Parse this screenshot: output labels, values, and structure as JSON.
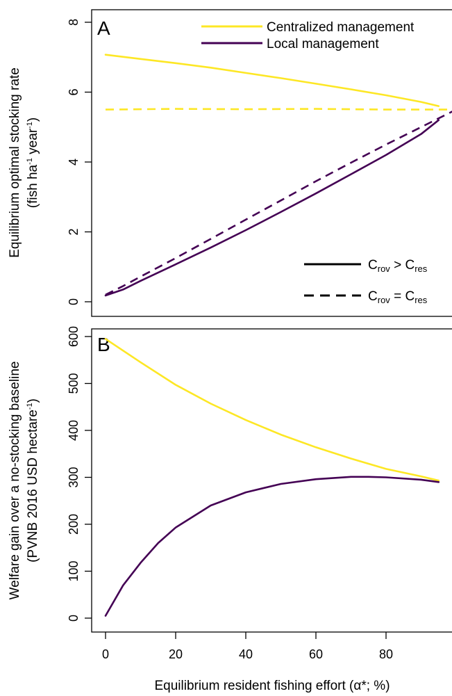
{
  "chart_data": [
    {
      "panel": "A",
      "type": "line",
      "ylabel_line1": "Equilibrium optimal stocking rate",
      "ylabel_line2": {
        "pre": "(fish ha",
        "sup1": "-1",
        "mid": " year",
        "sup2": "-1",
        "post": ")"
      },
      "ylim": [
        0,
        8
      ],
      "yticks": [
        0,
        2,
        4,
        6,
        8
      ],
      "xlim": [
        -3,
        100
      ],
      "grid": false,
      "legend_placement": "top-right",
      "series": [
        {
          "name": "Centralized management",
          "color": "#FDE725",
          "dash": "solid",
          "x": [
            0,
            10,
            20,
            30,
            40,
            50,
            60,
            70,
            80,
            90,
            95
          ],
          "y": [
            7.07,
            6.95,
            6.83,
            6.7,
            6.55,
            6.4,
            6.24,
            6.08,
            5.91,
            5.72,
            5.6
          ]
        },
        {
          "name": "Local management",
          "color": "#440154",
          "dash": "solid",
          "x": [
            0,
            5,
            10,
            20,
            30,
            40,
            50,
            60,
            70,
            80,
            90,
            95
          ],
          "y": [
            0.18,
            0.35,
            0.6,
            1.07,
            1.55,
            2.05,
            2.57,
            3.1,
            3.65,
            4.2,
            4.8,
            5.2
          ]
        },
        {
          "name": "",
          "color": "#FDE725",
          "dash": "dashed",
          "x": [
            0,
            20,
            40,
            60,
            80,
            100
          ],
          "y": [
            5.5,
            5.52,
            5.51,
            5.52,
            5.5,
            5.5
          ]
        },
        {
          "name": "",
          "color": "#440154",
          "dash": "dashed",
          "x": [
            0,
            5,
            10,
            20,
            30,
            40,
            50,
            60,
            70,
            80,
            90,
            100
          ],
          "y": [
            0.2,
            0.45,
            0.72,
            1.25,
            1.8,
            2.35,
            2.9,
            3.45,
            3.98,
            4.5,
            5.0,
            5.5
          ]
        }
      ],
      "line_type_legend": [
        {
          "dash": "solid",
          "main1": "C",
          "sub1": "rov",
          "op": " > ",
          "main2": "C",
          "sub2": "res"
        },
        {
          "dash": "dashed",
          "main1": "C",
          "sub1": "rov",
          "op": " = ",
          "main2": "C",
          "sub2": "res"
        }
      ]
    },
    {
      "panel": "B",
      "type": "line",
      "ylabel_line1": "Welfare gain over a no-stocking baseline",
      "ylabel_line2": {
        "pre": "(PVNB 2016 USD hectare",
        "sup1": "-1",
        "post": ")"
      },
      "xlabel": "Equilibrium resident fishing effort (α*; %)",
      "ylim": [
        0,
        600
      ],
      "yticks": [
        0,
        100,
        200,
        300,
        400,
        500,
        600
      ],
      "xlim": [
        -3,
        100
      ],
      "xticks": [
        0,
        20,
        40,
        60,
        80
      ],
      "grid": false,
      "series": [
        {
          "name": "Centralized management",
          "color": "#FDE725",
          "dash": "solid",
          "x": [
            0,
            10,
            20,
            30,
            40,
            50,
            60,
            70,
            80,
            90,
            95
          ],
          "y": [
            595,
            545,
            497,
            457,
            422,
            391,
            364,
            340,
            318,
            302,
            293
          ]
        },
        {
          "name": "Local management",
          "color": "#440154",
          "dash": "solid",
          "x": [
            0,
            5,
            10,
            15,
            20,
            30,
            40,
            50,
            60,
            70,
            75,
            80,
            90,
            95
          ],
          "y": [
            5,
            70,
            118,
            160,
            193,
            240,
            268,
            286,
            296,
            301,
            301,
            300,
            295,
            290
          ]
        }
      ]
    }
  ]
}
